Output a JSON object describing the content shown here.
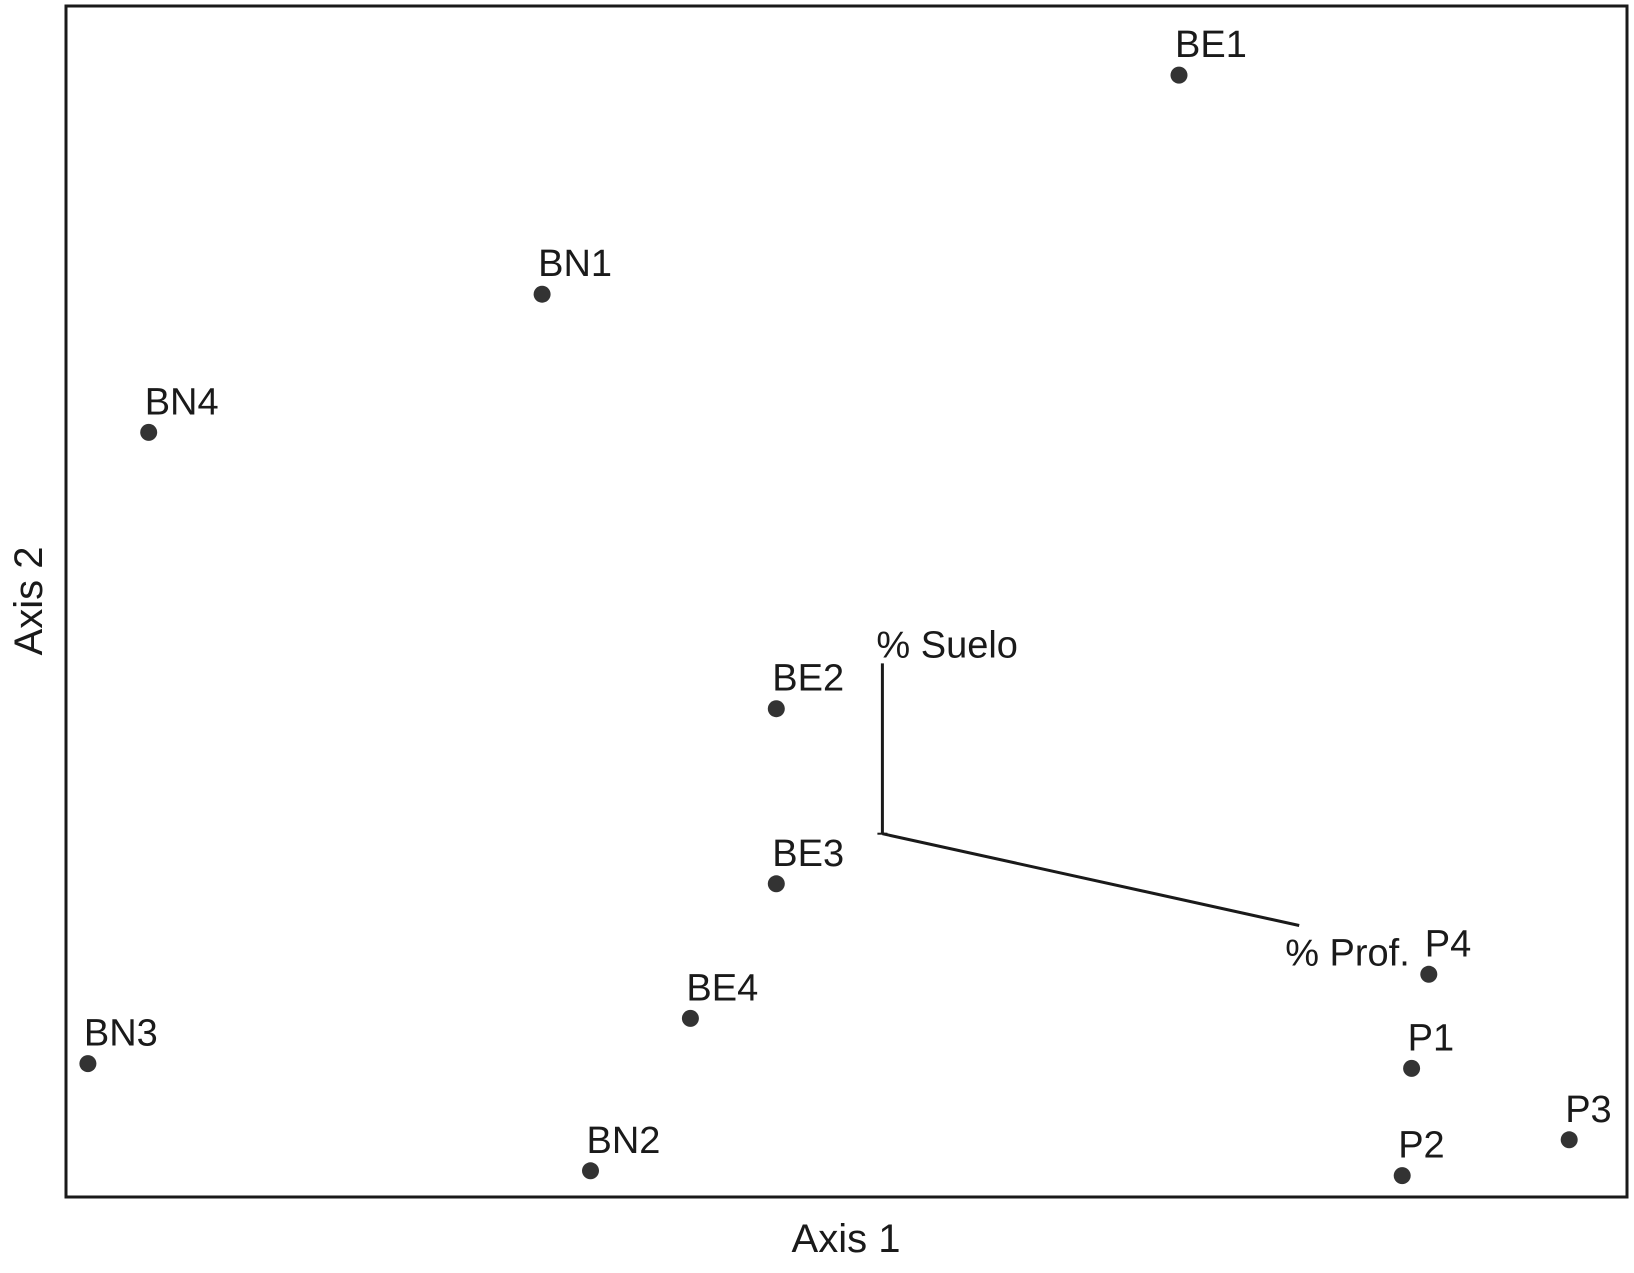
{
  "chart_data": {
    "type": "scatter",
    "xlabel": "Axis 1",
    "ylabel": "Axis 2",
    "xlim": [
      0,
      100
    ],
    "ylim": [
      0,
      100
    ],
    "grid": false,
    "colors": {
      "point": "#333333",
      "frame": "#1a1a1a",
      "vector": "#1a1a1a"
    },
    "points": [
      {
        "label": "BE1",
        "x": 71.3,
        "y": 94.2
      },
      {
        "label": "BN1",
        "x": 30.5,
        "y": 75.8
      },
      {
        "label": "BN4",
        "x": 5.3,
        "y": 64.2
      },
      {
        "label": "BE2",
        "x": 45.5,
        "y": 41.0
      },
      {
        "label": "BE3",
        "x": 45.5,
        "y": 26.3
      },
      {
        "label": "BE4",
        "x": 40.0,
        "y": 15.0
      },
      {
        "label": "BN3",
        "x": 1.4,
        "y": 11.2
      },
      {
        "label": "BN2",
        "x": 33.6,
        "y": 2.2
      },
      {
        "label": "P4",
        "x": 87.3,
        "y": 18.7
      },
      {
        "label": "P1",
        "x": 86.2,
        "y": 10.8
      },
      {
        "label": "P3",
        "x": 96.3,
        "y": 4.8
      },
      {
        "label": "P2",
        "x": 85.6,
        "y": 1.8
      }
    ],
    "vectors": {
      "origin": {
        "x": 52.3,
        "y": 30.5
      },
      "items": [
        {
          "label": "% Suelo",
          "x": 52.3,
          "y": 44.8
        },
        {
          "label": "% Prof.",
          "x": 79.0,
          "y": 22.8
        }
      ]
    }
  }
}
